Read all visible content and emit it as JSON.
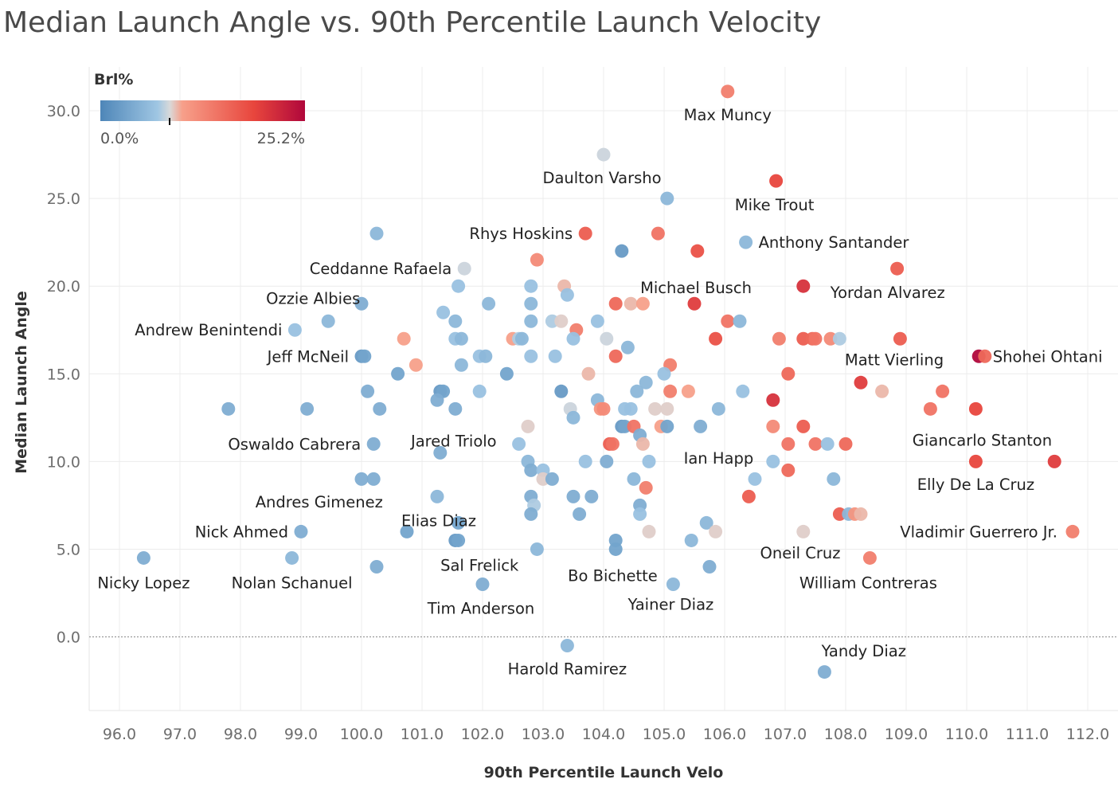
{
  "chart_data": {
    "type": "scatter",
    "title": "Median Launch Angle vs. 90th Percentile Launch Velocity",
    "xlabel": "90th Percentile Launch Velo",
    "ylabel": "Median Launch Angle",
    "xlim": [
      95.5,
      112.5
    ],
    "ylim": [
      -4.2,
      32.5
    ],
    "x_ticks": [
      96,
      97,
      98,
      99,
      100,
      101,
      102,
      103,
      104,
      105,
      106,
      107,
      108,
      109,
      110,
      111,
      112
    ],
    "y_ticks": [
      0,
      5,
      10,
      15,
      20,
      25,
      30
    ],
    "x_tick_labels": [
      "96.0",
      "97.0",
      "98.0",
      "99.0",
      "100.0",
      "101.0",
      "102.0",
      "103.0",
      "104.0",
      "105.0",
      "106.0",
      "107.0",
      "108.0",
      "109.0",
      "110.0",
      "111.0",
      "112.0"
    ],
    "y_tick_labels": [
      "0.0",
      "5.0",
      "10.0",
      "15.0",
      "20.0",
      "25.0",
      "30.0"
    ],
    "legend": {
      "title": "Brl%",
      "min_label": "0.0%",
      "max_label": "25.2%",
      "min": 0,
      "max": 25.2,
      "midpoint": 8.5,
      "position": "top-left"
    },
    "colors": {
      "low": "#4e86b8",
      "light_low": "#9fc6e3",
      "mid": "#d9d9d9",
      "light_high": "#f7a08a",
      "high": "#e8463d",
      "max": "#b0073b"
    },
    "points": [
      {
        "x": 106.05,
        "y": 31.1,
        "brl": 14,
        "label": "Max Muncy"
      },
      {
        "x": 104.0,
        "y": 27.5,
        "brl": 8,
        "label": "Daulton Varsho"
      },
      {
        "x": 106.85,
        "y": 26.0,
        "brl": 19,
        "label": "Mike Trout"
      },
      {
        "x": 105.05,
        "y": 25.0,
        "brl": 5
      },
      {
        "x": 100.25,
        "y": 23.0,
        "brl": 5
      },
      {
        "x": 103.7,
        "y": 23.0,
        "brl": 17,
        "label": "Rhys Hoskins"
      },
      {
        "x": 104.9,
        "y": 23.0,
        "brl": 15
      },
      {
        "x": 104.3,
        "y": 22.0,
        "brl": 2
      },
      {
        "x": 105.55,
        "y": 22.0,
        "brl": 18
      },
      {
        "x": 106.35,
        "y": 22.5,
        "brl": 5,
        "label": "Anthony Santander"
      },
      {
        "x": 101.7,
        "y": 21.0,
        "brl": 8,
        "label": "Ceddanne Rafaela"
      },
      {
        "x": 102.9,
        "y": 21.5,
        "brl": 13
      },
      {
        "x": 108.85,
        "y": 21.0,
        "brl": 17
      },
      {
        "x": 101.6,
        "y": 20.0,
        "brl": 6
      },
      {
        "x": 102.8,
        "y": 20.0,
        "brl": 6
      },
      {
        "x": 103.35,
        "y": 20.0,
        "brl": 10
      },
      {
        "x": 107.3,
        "y": 20.0,
        "brl": 21,
        "label": "Yordan Alvarez"
      },
      {
        "x": 103.4,
        "y": 19.5,
        "brl": 6
      },
      {
        "x": 100.0,
        "y": 19.0,
        "brl": 4
      },
      {
        "x": 102.1,
        "y": 19.0,
        "brl": 5
      },
      {
        "x": 102.8,
        "y": 19.0,
        "brl": 5
      },
      {
        "x": 104.2,
        "y": 19.0,
        "brl": 16
      },
      {
        "x": 104.45,
        "y": 19.0,
        "brl": 10
      },
      {
        "x": 104.65,
        "y": 19.0,
        "brl": 11
      },
      {
        "x": 105.5,
        "y": 19.0,
        "brl": 20,
        "label": "Michael Busch"
      },
      {
        "x": 101.35,
        "y": 18.5,
        "brl": 6
      },
      {
        "x": 99.45,
        "y": 18.0,
        "brl": 5
      },
      {
        "x": 101.55,
        "y": 18.0,
        "brl": 5
      },
      {
        "x": 102.8,
        "y": 18.0,
        "brl": 5
      },
      {
        "x": 103.15,
        "y": 18.0,
        "brl": 7
      },
      {
        "x": 103.3,
        "y": 18.0,
        "brl": 9
      },
      {
        "x": 103.9,
        "y": 18.0,
        "brl": 6
      },
      {
        "x": 106.05,
        "y": 18.0,
        "brl": 15
      },
      {
        "x": 106.25,
        "y": 18.0,
        "brl": 5
      },
      {
        "x": 98.9,
        "y": 17.5,
        "brl": 6,
        "label": "Andrew Benintendi"
      },
      {
        "x": 103.55,
        "y": 17.5,
        "brl": 14
      },
      {
        "x": 100.7,
        "y": 17.0,
        "brl": 11
      },
      {
        "x": 101.55,
        "y": 17.0,
        "brl": 6
      },
      {
        "x": 101.65,
        "y": 17.0,
        "brl": 5
      },
      {
        "x": 102.5,
        "y": 17.0,
        "brl": 11
      },
      {
        "x": 102.6,
        "y": 17.0,
        "brl": 7
      },
      {
        "x": 102.65,
        "y": 17.0,
        "brl": 5
      },
      {
        "x": 103.5,
        "y": 17.0,
        "brl": 6
      },
      {
        "x": 104.05,
        "y": 17.0,
        "brl": 8
      },
      {
        "x": 105.85,
        "y": 17.0,
        "brl": 18
      },
      {
        "x": 106.9,
        "y": 17.0,
        "brl": 14
      },
      {
        "x": 107.3,
        "y": 17.0,
        "brl": 17
      },
      {
        "x": 107.45,
        "y": 17.0,
        "brl": 16
      },
      {
        "x": 107.5,
        "y": 17.0,
        "brl": 15
      },
      {
        "x": 107.75,
        "y": 17.0,
        "brl": 13
      },
      {
        "x": 107.9,
        "y": 17.0,
        "brl": 7
      },
      {
        "x": 108.9,
        "y": 17.0,
        "brl": 17
      },
      {
        "x": 100.0,
        "y": 16.0,
        "brl": 2,
        "label": "Jeff McNeil"
      },
      {
        "x": 100.05,
        "y": 16.0,
        "brl": 3
      },
      {
        "x": 101.95,
        "y": 16.0,
        "brl": 6
      },
      {
        "x": 102.05,
        "y": 16.0,
        "brl": 5
      },
      {
        "x": 102.8,
        "y": 16.0,
        "brl": 6
      },
      {
        "x": 103.2,
        "y": 16.0,
        "brl": 6
      },
      {
        "x": 104.2,
        "y": 16.0,
        "brl": 16
      },
      {
        "x": 104.4,
        "y": 16.5,
        "brl": 5
      },
      {
        "x": 110.2,
        "y": 16.0,
        "brl": 25.2
      },
      {
        "x": 110.3,
        "y": 16.0,
        "brl": 16,
        "label": "Shohei Ohtani"
      },
      {
        "x": 100.9,
        "y": 15.5,
        "brl": 11
      },
      {
        "x": 101.65,
        "y": 15.5,
        "brl": 5
      },
      {
        "x": 105.1,
        "y": 15.5,
        "brl": 14
      },
      {
        "x": 100.6,
        "y": 15.0,
        "brl": 3
      },
      {
        "x": 102.4,
        "y": 15.0,
        "brl": 3
      },
      {
        "x": 103.75,
        "y": 15.0,
        "brl": 10
      },
      {
        "x": 105.0,
        "y": 15.0,
        "brl": 6
      },
      {
        "x": 107.05,
        "y": 15.0,
        "brl": 16
      },
      {
        "x": 104.7,
        "y": 14.5,
        "brl": 5
      },
      {
        "x": 108.25,
        "y": 14.5,
        "brl": 20,
        "label": "Matt Vierling"
      },
      {
        "x": 100.1,
        "y": 14.0,
        "brl": 4
      },
      {
        "x": 101.3,
        "y": 14.0,
        "brl": 2
      },
      {
        "x": 101.35,
        "y": 14.0,
        "brl": 3
      },
      {
        "x": 101.95,
        "y": 14.0,
        "brl": 6
      },
      {
        "x": 103.3,
        "y": 14.0,
        "brl": 2
      },
      {
        "x": 104.55,
        "y": 14.0,
        "brl": 5
      },
      {
        "x": 105.1,
        "y": 14.0,
        "brl": 14
      },
      {
        "x": 105.4,
        "y": 14.0,
        "brl": 11
      },
      {
        "x": 106.3,
        "y": 14.0,
        "brl": 6
      },
      {
        "x": 108.6,
        "y": 14.0,
        "brl": 10
      },
      {
        "x": 109.6,
        "y": 14.0,
        "brl": 15
      },
      {
        "x": 101.25,
        "y": 13.5,
        "brl": 4
      },
      {
        "x": 103.9,
        "y": 13.5,
        "brl": 5
      },
      {
        "x": 106.8,
        "y": 13.5,
        "brl": 21
      },
      {
        "x": 97.8,
        "y": 13.0,
        "brl": 4
      },
      {
        "x": 99.1,
        "y": 13.0,
        "brl": 4
      },
      {
        "x": 100.3,
        "y": 13.0,
        "brl": 4
      },
      {
        "x": 101.55,
        "y": 13.0,
        "brl": 4
      },
      {
        "x": 103.45,
        "y": 13.0,
        "brl": 8
      },
      {
        "x": 103.95,
        "y": 13.0,
        "brl": 12
      },
      {
        "x": 104.0,
        "y": 13.0,
        "brl": 13
      },
      {
        "x": 104.35,
        "y": 13.0,
        "brl": 6
      },
      {
        "x": 104.45,
        "y": 13.0,
        "brl": 6
      },
      {
        "x": 104.85,
        "y": 13.0,
        "brl": 9
      },
      {
        "x": 105.05,
        "y": 13.0,
        "brl": 9
      },
      {
        "x": 105.9,
        "y": 13.0,
        "brl": 5
      },
      {
        "x": 109.4,
        "y": 13.0,
        "brl": 15
      },
      {
        "x": 110.15,
        "y": 13.0,
        "brl": 19
      },
      {
        "x": 103.5,
        "y": 12.5,
        "brl": 5
      },
      {
        "x": 102.75,
        "y": 12.0,
        "brl": 9
      },
      {
        "x": 104.3,
        "y": 12.0,
        "brl": 2
      },
      {
        "x": 104.35,
        "y": 12.0,
        "brl": 3
      },
      {
        "x": 104.5,
        "y": 12.0,
        "brl": 15
      },
      {
        "x": 104.95,
        "y": 12.0,
        "brl": 11
      },
      {
        "x": 105.05,
        "y": 12.0,
        "brl": 3
      },
      {
        "x": 105.6,
        "y": 12.0,
        "brl": 4
      },
      {
        "x": 106.8,
        "y": 12.0,
        "brl": 13
      },
      {
        "x": 107.3,
        "y": 12.0,
        "brl": 17
      },
      {
        "x": 104.6,
        "y": 11.5,
        "brl": 4
      },
      {
        "x": 100.2,
        "y": 11.0,
        "brl": 4,
        "label": "Oswaldo Cabrera"
      },
      {
        "x": 102.6,
        "y": 11.0,
        "brl": 6
      },
      {
        "x": 104.1,
        "y": 11.0,
        "brl": 17
      },
      {
        "x": 104.15,
        "y": 11.0,
        "brl": 15
      },
      {
        "x": 104.65,
        "y": 11.0,
        "brl": 10
      },
      {
        "x": 107.05,
        "y": 11.0,
        "brl": 15
      },
      {
        "x": 107.5,
        "y": 11.0,
        "brl": 15
      },
      {
        "x": 107.7,
        "y": 11.0,
        "brl": 6
      },
      {
        "x": 108.0,
        "y": 11.0,
        "brl": 16
      },
      {
        "x": 101.3,
        "y": 10.5,
        "brl": 4,
        "label": "Jared Triolo"
      },
      {
        "x": 102.75,
        "y": 10.0,
        "brl": 5
      },
      {
        "x": 103.7,
        "y": 10.0,
        "brl": 6
      },
      {
        "x": 104.05,
        "y": 10.0,
        "brl": 4
      },
      {
        "x": 104.75,
        "y": 10.0,
        "brl": 6
      },
      {
        "x": 106.8,
        "y": 10.0,
        "brl": 6
      },
      {
        "x": 110.15,
        "y": 10.0,
        "brl": 19,
        "label": "Giancarlo Stanton"
      },
      {
        "x": 111.45,
        "y": 10.0,
        "brl": 20
      },
      {
        "x": 102.8,
        "y": 9.5,
        "brl": 4
      },
      {
        "x": 103.0,
        "y": 9.5,
        "brl": 6
      },
      {
        "x": 107.05,
        "y": 9.5,
        "brl": 16
      },
      {
        "x": 100.0,
        "y": 9.0,
        "brl": 4
      },
      {
        "x": 100.2,
        "y": 9.0,
        "brl": 4
      },
      {
        "x": 103.0,
        "y": 9.0,
        "brl": 9
      },
      {
        "x": 103.15,
        "y": 9.0,
        "brl": 4
      },
      {
        "x": 104.5,
        "y": 9.0,
        "brl": 5
      },
      {
        "x": 106.5,
        "y": 9.0,
        "brl": 6
      },
      {
        "x": 107.8,
        "y": 9.0,
        "brl": 5
      },
      {
        "x": 104.7,
        "y": 8.5,
        "brl": 14
      },
      {
        "x": 101.25,
        "y": 8.0,
        "brl": 5,
        "label": "Elias Diaz"
      },
      {
        "x": 102.8,
        "y": 8.0,
        "brl": 4
      },
      {
        "x": 103.5,
        "y": 8.0,
        "brl": 4
      },
      {
        "x": 103.8,
        "y": 8.0,
        "brl": 4
      },
      {
        "x": 106.4,
        "y": 8.0,
        "brl": 17
      },
      {
        "x": 102.85,
        "y": 7.5,
        "brl": 7
      },
      {
        "x": 104.6,
        "y": 7.5,
        "brl": 4
      },
      {
        "x": 102.8,
        "y": 7.0,
        "brl": 4
      },
      {
        "x": 103.6,
        "y": 7.0,
        "brl": 4
      },
      {
        "x": 104.6,
        "y": 7.0,
        "brl": 6
      },
      {
        "x": 107.9,
        "y": 7.0,
        "brl": 17
      },
      {
        "x": 108.05,
        "y": 7.0,
        "brl": 5
      },
      {
        "x": 108.15,
        "y": 7.0,
        "brl": 12
      },
      {
        "x": 108.25,
        "y": 7.0,
        "brl": 10
      },
      {
        "x": 101.6,
        "y": 6.5,
        "brl": 3
      },
      {
        "x": 105.7,
        "y": 6.5,
        "brl": 5
      },
      {
        "x": 99.0,
        "y": 6.0,
        "brl": 4,
        "label": "Nick Ahmed"
      },
      {
        "x": 100.75,
        "y": 6.0,
        "brl": 3
      },
      {
        "x": 104.75,
        "y": 6.0,
        "brl": 9
      },
      {
        "x": 105.85,
        "y": 6.0,
        "brl": 9
      },
      {
        "x": 107.3,
        "y": 6.0,
        "brl": 9
      },
      {
        "x": 111.75,
        "y": 6.0,
        "brl": 14,
        "label": "Vladimir Guerrero Jr."
      },
      {
        "x": 101.55,
        "y": 5.5,
        "brl": 2
      },
      {
        "x": 101.6,
        "y": 5.5,
        "brl": 3
      },
      {
        "x": 104.2,
        "y": 5.5,
        "brl": 3
      },
      {
        "x": 105.45,
        "y": 5.5,
        "brl": 5
      },
      {
        "x": 102.9,
        "y": 5.0,
        "brl": 5
      },
      {
        "x": 104.2,
        "y": 5.0,
        "brl": 3
      },
      {
        "x": 96.4,
        "y": 4.5,
        "brl": 4,
        "label": "Nicky Lopez"
      },
      {
        "x": 98.85,
        "y": 4.5,
        "brl": 5,
        "label": "Nolan Schanuel"
      },
      {
        "x": 108.4,
        "y": 4.5,
        "brl": 14,
        "label": "William Contreras"
      },
      {
        "x": 100.25,
        "y": 4.0,
        "brl": 4
      },
      {
        "x": 105.75,
        "y": 4.0,
        "brl": 4
      },
      {
        "x": 102.0,
        "y": 3.0,
        "brl": 4,
        "label": "Tim Anderson"
      },
      {
        "x": 105.15,
        "y": 3.0,
        "brl": 5,
        "label": "Yainer Diaz"
      },
      {
        "x": 103.4,
        "y": -0.5,
        "brl": 5,
        "label": "Harold Ramirez"
      },
      {
        "x": 107.65,
        "y": -2.0,
        "brl": 4
      }
    ],
    "free_labels": [
      {
        "text": "Ozzie Albies",
        "x": 99.2,
        "y": 19.3
      },
      {
        "text": "Andres Gimenez",
        "x": 99.3,
        "y": 7.7
      },
      {
        "text": "Sal Frelick",
        "x": 101.95,
        "y": 4.1
      },
      {
        "text": "Bo Bichette",
        "x": 104.15,
        "y": 3.5
      },
      {
        "text": "Ian Happ",
        "x": 105.9,
        "y": 10.2
      },
      {
        "text": "Oneil Cruz",
        "x": 107.25,
        "y": 4.8
      },
      {
        "text": "Elly De La Cruz",
        "x": 110.15,
        "y": 8.7
      },
      {
        "text": "Yandy Diaz",
        "x": 108.3,
        "y": -0.8
      }
    ]
  }
}
